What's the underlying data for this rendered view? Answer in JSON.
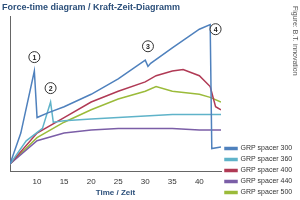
{
  "chart_data": {
    "type": "line",
    "title": "Force-time diagram / Kraft-Zeit-Diagramm",
    "x_label": "Time / Zeit",
    "source": "Figure: B.T. innovation",
    "xlim": [
      5,
      44
    ],
    "xticks": [
      10,
      15,
      20,
      25,
      30,
      35,
      40
    ],
    "ylim": [
      0,
      100
    ],
    "tick_labels": "x",
    "grid": false,
    "legend": "lower right",
    "series": [
      {
        "name": "GRP spacer 300",
        "color": "#4f81bd",
        "x": [
          5,
          7,
          9.5,
          10,
          12,
          15,
          20,
          25,
          30,
          30.5,
          31,
          35,
          40,
          42,
          42.3,
          44
        ],
        "values": [
          5,
          25,
          65,
          35,
          38,
          42,
          50,
          60,
          72,
          68,
          70,
          80,
          92,
          95,
          15,
          16
        ]
      },
      {
        "name": "GRP spacer 360",
        "color": "#5fb3c9",
        "x": [
          5,
          8,
          11,
          12.5,
          13,
          15,
          20,
          25,
          30,
          35,
          40,
          44
        ],
        "values": [
          5,
          20,
          28,
          45,
          32,
          33,
          34,
          35,
          36,
          37,
          37,
          37
        ]
      },
      {
        "name": "GRP spacer 400",
        "color": "#b03a55",
        "x": [
          5,
          10,
          15,
          20,
          25,
          30,
          32,
          35,
          37,
          40,
          42,
          43,
          44
        ],
        "values": [
          5,
          25,
          35,
          45,
          52,
          58,
          62,
          65,
          66,
          62,
          55,
          42,
          40
        ]
      },
      {
        "name": "GRP spacer 440",
        "color": "#7b5ea7",
        "x": [
          5,
          10,
          15,
          20,
          25,
          30,
          35,
          40,
          44
        ],
        "values": [
          5,
          20,
          25,
          27,
          28,
          28,
          28,
          27,
          27
        ]
      },
      {
        "name": "GRP spacer 500",
        "color": "#9bbb3a",
        "x": [
          5,
          10,
          15,
          20,
          25,
          30,
          32,
          35,
          40,
          42,
          44
        ],
        "values": [
          5,
          22,
          32,
          40,
          47,
          52,
          55,
          52,
          50,
          48,
          45
        ]
      }
    ],
    "annotations": [
      {
        "text": "1",
        "x": 9.5,
        "y": 74
      },
      {
        "text": "2",
        "x": 12.5,
        "y": 54
      },
      {
        "text": "3",
        "x": 30.5,
        "y": 81
      },
      {
        "text": "4",
        "x": 43,
        "y": 92
      }
    ]
  }
}
